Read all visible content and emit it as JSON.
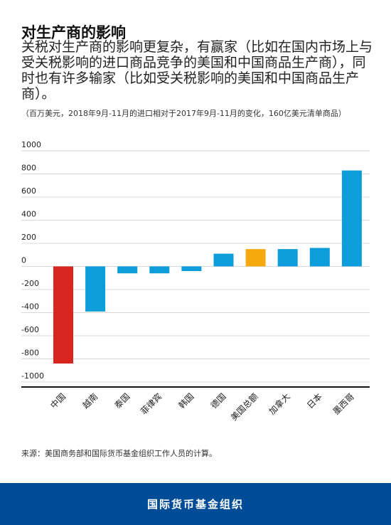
{
  "header": {
    "title": "对生产商的影响",
    "subtitle": "关税对生产商的影响更复杂，有赢家（比如在国内市场上与受关税影响的进口商品竞争的美国和中国商品生产商），同时也有许多输家（比如受关税影响的美国和中国商品生产商）。",
    "unit_note": "（百万美元，2018年9月-11月的进口相对于2017年9月-11月的变化，160亿美元清单商品）"
  },
  "chart_data": {
    "type": "bar",
    "title": "",
    "xlabel": "",
    "ylabel": "",
    "ylim": [
      -1000,
      1000
    ],
    "yticks": [
      1000,
      800,
      600,
      400,
      200,
      0,
      -200,
      -400,
      -600,
      -800,
      -1000
    ],
    "grid": true,
    "categories": [
      "中国",
      "越南",
      "泰国",
      "菲律宾",
      "韩国",
      "德国",
      "美国总额",
      "加拿大",
      "日本",
      "墨西哥"
    ],
    "values": [
      -840,
      -390,
      -60,
      -60,
      -40,
      110,
      150,
      150,
      160,
      830
    ],
    "colors": [
      "#d7261e",
      "#0d9ddb",
      "#0d9ddb",
      "#0d9ddb",
      "#0d9ddb",
      "#0d9ddb",
      "#f5a90e",
      "#0d9ddb",
      "#0d9ddb",
      "#0d9ddb"
    ]
  },
  "source": "来源：美国商务部和国际货币基金组织工作人员的计算。",
  "footer": {
    "org_name": "国际货币基金组织"
  }
}
